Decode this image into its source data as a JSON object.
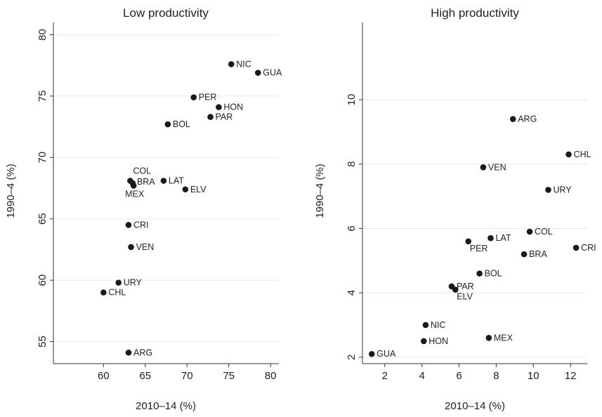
{
  "chart_data": [
    {
      "type": "scatter",
      "title": "Low productivity",
      "xlabel": "2010–14 (%)",
      "ylabel": "1990–4 (%)",
      "xlim": [
        54,
        81
      ],
      "ylim": [
        53.2,
        81.0
      ],
      "xticks": [
        "60",
        "65",
        "70",
        "75",
        "80"
      ],
      "yticks": [
        "55",
        "60",
        "65",
        "70",
        "75",
        "80"
      ],
      "grid": true,
      "points": [
        {
          "label": "NIC",
          "x": 75.3,
          "y": 77.6
        },
        {
          "label": "GUA",
          "x": 78.5,
          "y": 76.9
        },
        {
          "label": "PER",
          "x": 70.8,
          "y": 74.9
        },
        {
          "label": "HON",
          "x": 73.8,
          "y": 74.1
        },
        {
          "label": "PAR",
          "x": 72.8,
          "y": 73.3
        },
        {
          "label": "BOL",
          "x": 67.7,
          "y": 72.7
        },
        {
          "label": "COL",
          "x": 63.2,
          "y": 68.1
        },
        {
          "label": "BRA",
          "x": 63.5,
          "y": 67.9
        },
        {
          "label": "MEX",
          "x": 63.6,
          "y": 67.7
        },
        {
          "label": "LAT",
          "x": 67.2,
          "y": 68.1
        },
        {
          "label": "ELV",
          "x": 69.8,
          "y": 67.4
        },
        {
          "label": "CRI",
          "x": 63.0,
          "y": 64.5
        },
        {
          "label": "VEN",
          "x": 63.3,
          "y": 62.7
        },
        {
          "label": "URY",
          "x": 61.8,
          "y": 59.8
        },
        {
          "label": "CHL",
          "x": 60.0,
          "y": 59.0
        },
        {
          "label": "ARG",
          "x": 63.0,
          "y": 54.1
        }
      ]
    },
    {
      "type": "scatter",
      "title": "High productivity",
      "xlabel": "2010–14 (%)",
      "ylabel": "1990–4 (%)",
      "xlim": [
        0.8,
        12.9
      ],
      "ylim": [
        1.8,
        12.4
      ],
      "xticks": [
        "2",
        "4",
        "6",
        "8",
        "10",
        "12"
      ],
      "yticks": [
        "2",
        "4",
        "6",
        "8",
        "10"
      ],
      "grid": true,
      "points": [
        {
          "label": "ARG",
          "x": 8.9,
          "y": 9.4
        },
        {
          "label": "CHL",
          "x": 11.9,
          "y": 8.3
        },
        {
          "label": "VEN",
          "x": 7.3,
          "y": 7.9
        },
        {
          "label": "URY",
          "x": 10.8,
          "y": 7.2
        },
        {
          "label": "COL",
          "x": 9.8,
          "y": 5.9
        },
        {
          "label": "LAT",
          "x": 7.7,
          "y": 5.7
        },
        {
          "label": "PER",
          "x": 6.5,
          "y": 5.6
        },
        {
          "label": "CRI",
          "x": 12.3,
          "y": 5.4
        },
        {
          "label": "BRA",
          "x": 9.5,
          "y": 5.2
        },
        {
          "label": "BOL",
          "x": 7.1,
          "y": 4.6
        },
        {
          "label": "PAR",
          "x": 5.6,
          "y": 4.2
        },
        {
          "label": "ELV",
          "x": 5.8,
          "y": 4.1
        },
        {
          "label": "NIC",
          "x": 4.2,
          "y": 3.0
        },
        {
          "label": "HON",
          "x": 4.1,
          "y": 2.5
        },
        {
          "label": "MEX",
          "x": 7.6,
          "y": 2.6
        },
        {
          "label": "GUA",
          "x": 1.3,
          "y": 2.1
        }
      ]
    }
  ]
}
